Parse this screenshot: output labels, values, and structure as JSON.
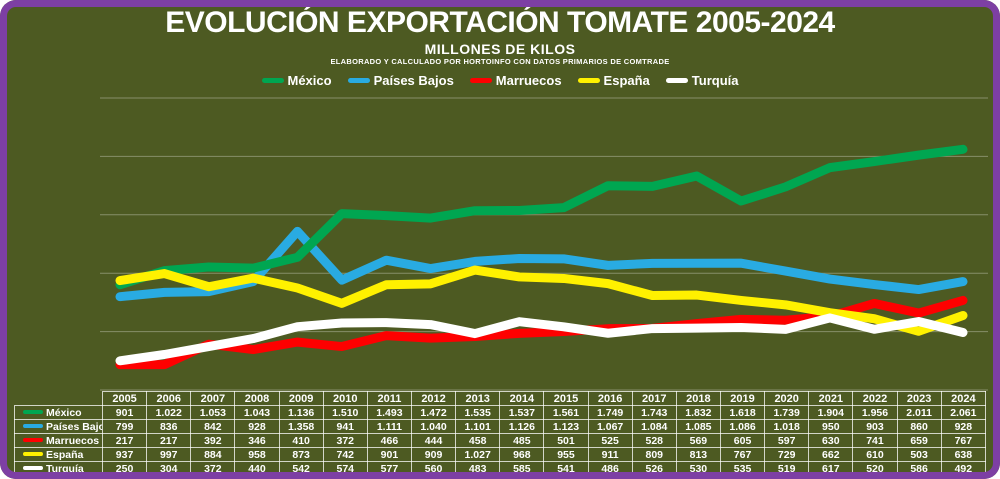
{
  "header": {
    "title": "EVOLUCIÓN EXPORTACIÓN TOMATE 2005-2024",
    "subtitle": "MILLONES DE KILOS",
    "source": "ELABORADO Y CALCULADO POR HORTOINFO CON DATOS PRIMARIOS DE COMTRADE"
  },
  "colors": {
    "background": "#4D5A22",
    "border": "#7D3FA4",
    "gridline": "#B7BCA4",
    "text": "#FFFFFF"
  },
  "chart_data": {
    "type": "line",
    "title": "EVOLUCIÓN EXPORTACIÓN TOMATE 2005-2024",
    "subtitle": "MILLONES DE KILOS",
    "unit": "millones de kilos",
    "x": [
      2005,
      2006,
      2007,
      2008,
      2009,
      2010,
      2011,
      2012,
      2013,
      2014,
      2015,
      2016,
      2017,
      2018,
      2019,
      2020,
      2021,
      2022,
      2023,
      2024
    ],
    "series": [
      {
        "name": "México",
        "color": "#00A651",
        "values": [
          901,
          1022,
          1053,
          1043,
          1136,
          1510,
          1493,
          1472,
          1535,
          1537,
          1561,
          1749,
          1743,
          1832,
          1618,
          1739,
          1904,
          1956,
          2011,
          2061
        ]
      },
      {
        "name": "Países Bajos",
        "color": "#29ABE2",
        "values": [
          799,
          836,
          842,
          928,
          1358,
          941,
          1111,
          1040,
          1101,
          1126,
          1123,
          1067,
          1084,
          1085,
          1086,
          1018,
          950,
          903,
          860,
          928
        ]
      },
      {
        "name": "Marruecos",
        "color": "#FE0000",
        "values": [
          217,
          217,
          392,
          346,
          410,
          372,
          466,
          444,
          458,
          485,
          501,
          525,
          528,
          569,
          605,
          597,
          630,
          741,
          659,
          767
        ]
      },
      {
        "name": "España",
        "color": "#FFF100",
        "values": [
          937,
          997,
          884,
          958,
          873,
          742,
          901,
          909,
          1027,
          968,
          955,
          911,
          809,
          813,
          767,
          729,
          662,
          610,
          503,
          638
        ]
      },
      {
        "name": "Turquía",
        "color": "#FFFFFF",
        "values": [
          250,
          304,
          372,
          440,
          542,
          574,
          577,
          560,
          483,
          585,
          541,
          486,
          526,
          530,
          535,
          519,
          617,
          520,
          586,
          492
        ]
      }
    ],
    "ylim": [
      0,
      2500
    ],
    "grid": "horizontal",
    "gridline_values": [
      0,
      500,
      1000,
      1500,
      2000,
      2500
    ],
    "legend_position": "top",
    "draw_order": [
      "Países Bajos",
      "México",
      "Marruecos",
      "España",
      "Turquía"
    ]
  }
}
